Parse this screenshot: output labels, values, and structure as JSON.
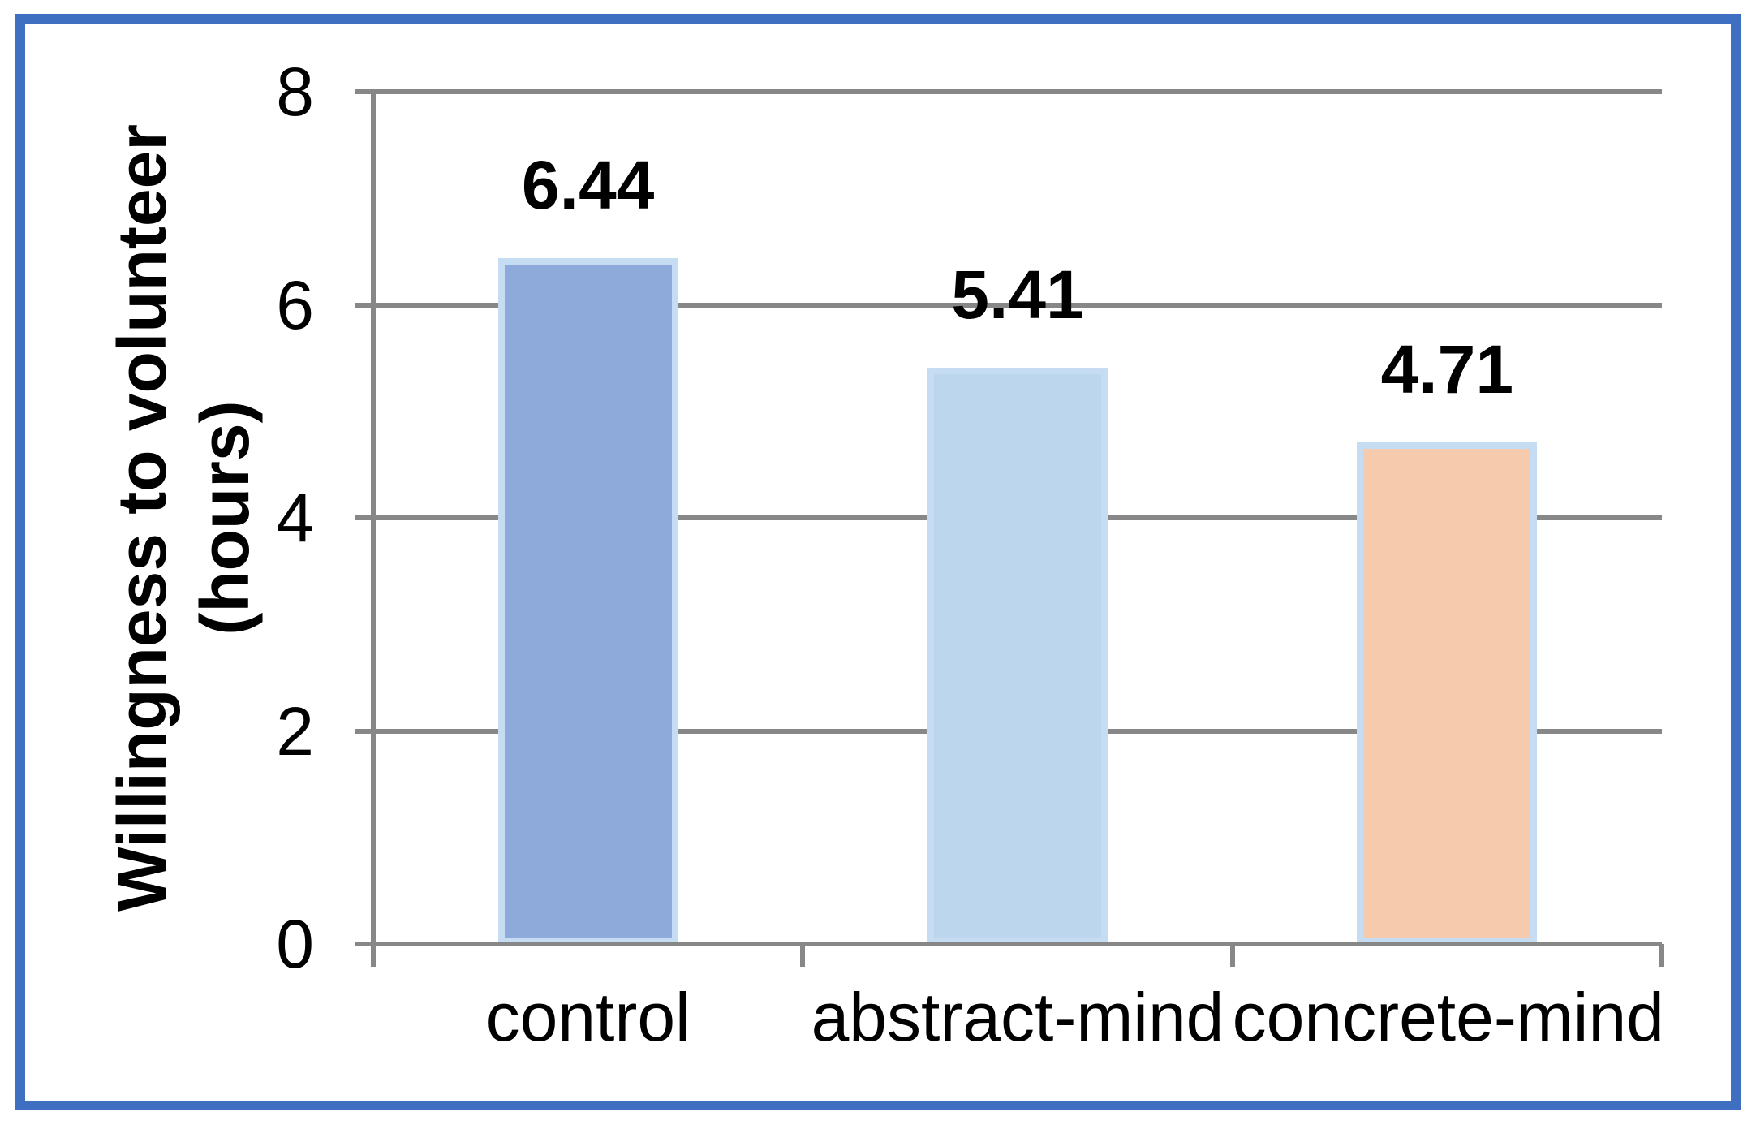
{
  "chart_data": {
    "type": "bar",
    "title": "",
    "categories": [
      "control",
      "abstract-mind",
      "concrete-mind"
    ],
    "values": [
      6.44,
      5.41,
      4.71
    ],
    "data_labels": [
      "6.44",
      "5.41",
      "4.71"
    ],
    "ylabel": "Willingness to volunteer (hours)",
    "ylabel_lines": [
      "Willingness to volunteer",
      "(hours)"
    ],
    "xlabel": "",
    "ylim": [
      0,
      8
    ],
    "yticks": [
      0,
      2,
      4,
      6,
      8
    ],
    "grid": true,
    "legend_position": "none",
    "bar_colors": [
      "#8eaadb",
      "#bcd6ee",
      "#f6caac"
    ],
    "bar_border_color": "#c6dcf2",
    "axis_color": "#878787",
    "frame_border_color": "#3e6fc0",
    "label_color": "#000000"
  }
}
